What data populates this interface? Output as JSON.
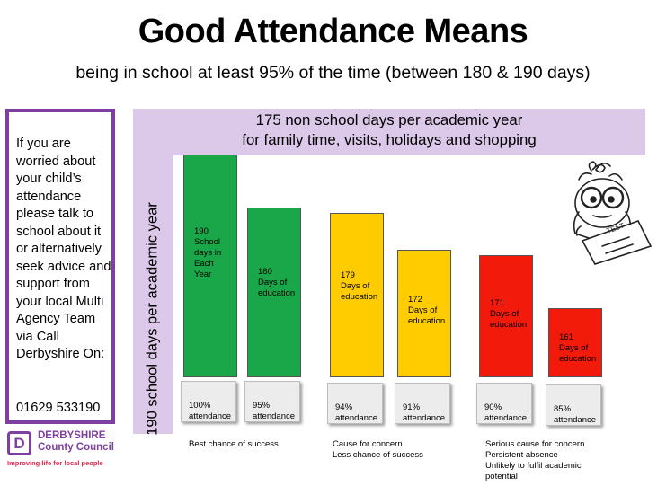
{
  "header": {
    "title": "Good Attendance Means",
    "subtitle": "being in school at least 95% of the time (between 180 & 190 days)"
  },
  "sidebar": {
    "message": "If you are worried about your child’s attendance please talk to school about it or alternatively seek advice and support from your local Multi Agency Team via Call Derbyshire On:",
    "phone": "01629 533190"
  },
  "logo": {
    "mark": "D",
    "name": "DERBYSHIRE",
    "council": "County Council",
    "tagline": "Improving life for local people"
  },
  "banner": {
    "line1": "175 non school days per academic  year",
    "line2": "for family time, visits, holidays and shopping"
  },
  "colors": {
    "green": "#1aa74a",
    "amber": "#ffcc00",
    "red": "#f21a0a",
    "lilac": "#dcc8e8",
    "purple": "#7f3fa0"
  },
  "chart_data": {
    "type": "bar",
    "title": "Good Attendance Means",
    "ylabel": "190 school days per academic year",
    "ylim": [
      0,
      190
    ],
    "categories": [
      "100%\nattendance",
      "95%\nattendance",
      "94%\nattendance",
      "91%\nattendance",
      "90%\nattendance",
      "85%\nattendance"
    ],
    "values": [
      190,
      180,
      179,
      172,
      171,
      161
    ],
    "bar_labels": [
      "190\nSchool\ndays in\nEach\nYear",
      "180\nDays of\neducation",
      "179\nDays of\neducation",
      "172\nDays of\neducation",
      "171\nDays of\neducation",
      "161\nDays of\neducation"
    ],
    "bar_colors": [
      "green",
      "green",
      "amber",
      "amber",
      "red",
      "red"
    ],
    "group_captions": [
      "Best chance of success",
      "Cause for concern\nLess chance of success",
      "Serious cause for concern\nPersistent absence\nUnlikely to fulfil academic\npotential"
    ]
  }
}
